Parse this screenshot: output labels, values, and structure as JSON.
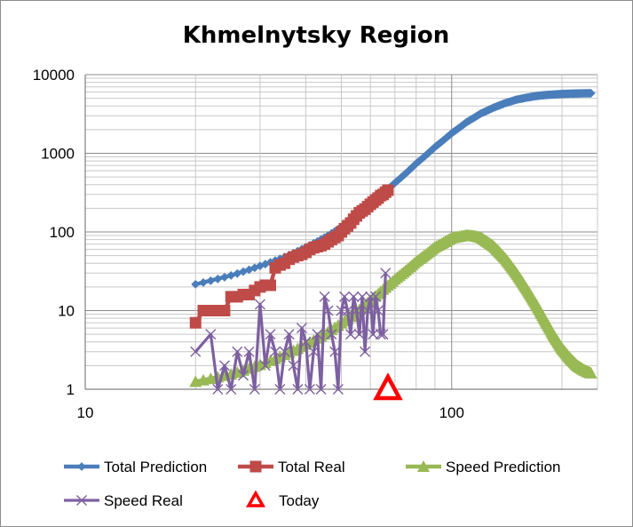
{
  "chart_data": {
    "type": "line",
    "title": "Khmelnytsky Region",
    "x_scale": "log",
    "y_scale": "log",
    "xlim": [
      10,
      250
    ],
    "ylim": [
      1,
      10000
    ],
    "x_ticks": [
      "10",
      "100"
    ],
    "y_ticks": [
      "1",
      "10",
      "100",
      "1000",
      "10000"
    ],
    "grid": true,
    "legend_position": "bottom",
    "series": [
      {
        "name": "Total Prediction",
        "color": "#4a7ebb",
        "marker": "diamond",
        "x": [
          20,
          25,
          30,
          35,
          40,
          45,
          50,
          55,
          60,
          65,
          70,
          80,
          90,
          100,
          110,
          120,
          130,
          140,
          150,
          160,
          170,
          180,
          190,
          200,
          210,
          220,
          230,
          240
        ],
        "y": [
          21.6,
          28,
          37,
          48,
          64,
          85,
          115,
          160,
          225,
          310,
          420,
          740,
          1200,
          1800,
          2500,
          3200,
          3800,
          4350,
          4800,
          5100,
          5350,
          5500,
          5600,
          5680,
          5730,
          5760,
          5790,
          5800
        ]
      },
      {
        "name": "Total Real",
        "color": "#be4b48",
        "marker": "square",
        "x": [
          20,
          21,
          22,
          23,
          24,
          25,
          26,
          27,
          28,
          29,
          30,
          31,
          32,
          33,
          34,
          35,
          36,
          37,
          38,
          39,
          40,
          41,
          42,
          43,
          44,
          45,
          46,
          47,
          48,
          49,
          50,
          51,
          52,
          53,
          54,
          55,
          56,
          57,
          58,
          59,
          60,
          61,
          62,
          63,
          64,
          65,
          66,
          67
        ],
        "y": [
          7,
          10,
          10,
          10,
          10,
          15,
          15,
          16,
          16,
          18,
          20,
          21,
          21,
          35,
          38,
          40,
          45,
          48,
          50,
          52,
          55,
          60,
          63,
          65,
          67,
          70,
          75,
          80,
          85,
          90,
          100,
          110,
          120,
          130,
          145,
          160,
          175,
          185,
          195,
          210,
          225,
          240,
          255,
          270,
          290,
          300,
          320,
          340
        ]
      },
      {
        "name": "Speed Prediction",
        "color": "#98b954",
        "marker": "triangle",
        "x": [
          20,
          25,
          30,
          35,
          40,
          45,
          50,
          55,
          60,
          65,
          70,
          80,
          90,
          100,
          110,
          115,
          120,
          130,
          140,
          150,
          160,
          170,
          180,
          190,
          200,
          210,
          220,
          230,
          240
        ],
        "y": [
          1.25,
          1.55,
          2.05,
          2.75,
          3.7,
          5.0,
          6.9,
          9.6,
          13.5,
          18.5,
          25,
          42,
          64,
          84,
          91,
          89,
          85,
          66,
          46,
          30,
          19,
          12,
          7.5,
          4.8,
          3.3,
          2.5,
          2.0,
          1.75,
          1.6
        ]
      },
      {
        "name": "Speed Real",
        "color": "#7d60a0",
        "marker": "x",
        "x": [
          20,
          22,
          23,
          24,
          25,
          26,
          27,
          28,
          29,
          30,
          31,
          32,
          33,
          34,
          35,
          36,
          37,
          38,
          39,
          40,
          41,
          42,
          43,
          44,
          45,
          46,
          47,
          48,
          49,
          50,
          51,
          52,
          53,
          54,
          55,
          56,
          57,
          58,
          59,
          60,
          61,
          62,
          63,
          64,
          65,
          66
        ],
        "y": [
          3,
          5,
          1,
          2,
          1,
          3,
          1.5,
          3,
          1,
          12,
          2,
          5,
          3,
          1,
          3,
          5,
          2,
          1,
          6,
          4,
          1,
          3,
          5,
          1,
          15,
          10,
          5,
          3,
          1,
          10,
          15,
          10,
          5,
          15,
          10,
          5,
          15,
          3,
          10,
          15,
          5,
          15,
          10,
          5,
          5,
          30
        ]
      },
      {
        "name": "Today",
        "color": "#ff0000",
        "marker": "triangle-open",
        "x": [
          67
        ],
        "y": [
          1
        ]
      }
    ]
  }
}
